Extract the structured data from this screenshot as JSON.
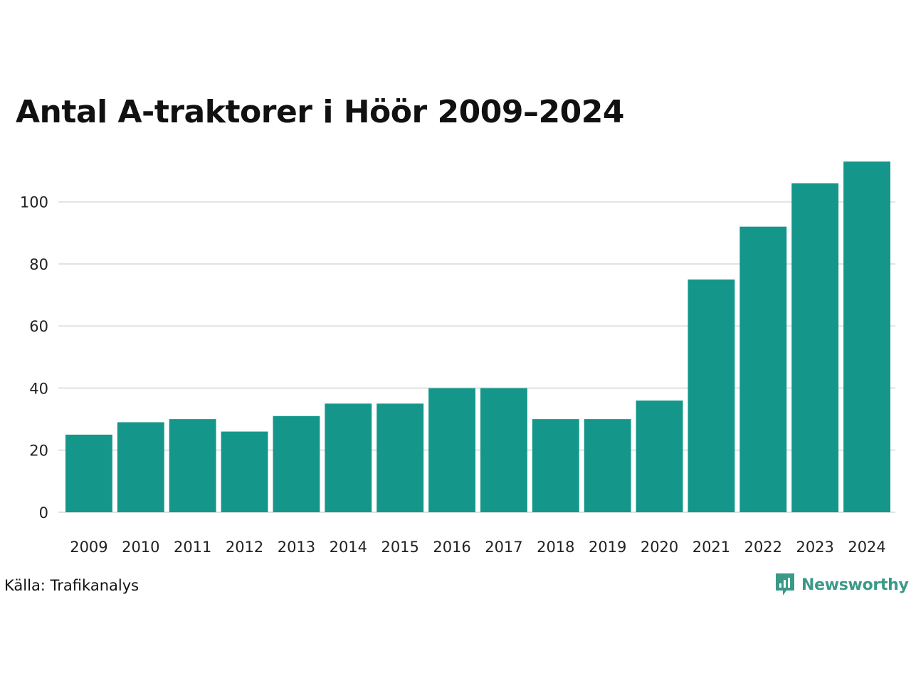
{
  "title": "Antal A-traktorer i Höör 2009–2024",
  "source": "Källa: Trafikanalys",
  "brand": {
    "name": "Newsworthy",
    "icon": "newsworthy-logo-icon",
    "color": "#3a9988"
  },
  "chart_data": {
    "type": "bar",
    "title": "Antal A-traktorer i Höör 2009–2024",
    "xlabel": "",
    "ylabel": "",
    "categories": [
      "2009",
      "2010",
      "2011",
      "2012",
      "2013",
      "2014",
      "2015",
      "2016",
      "2017",
      "2018",
      "2019",
      "2020",
      "2021",
      "2022",
      "2023",
      "2024"
    ],
    "values": [
      25,
      29,
      30,
      26,
      31,
      35,
      35,
      40,
      40,
      30,
      30,
      36,
      75,
      92,
      106,
      113
    ],
    "ylim": [
      0,
      113
    ],
    "yticks": [
      0,
      20,
      40,
      60,
      80,
      100
    ],
    "ytick_labels": [
      "0",
      "20",
      "40",
      "60",
      "80",
      "100"
    ],
    "grid": true,
    "legend": "none",
    "bar_color": "#14978a",
    "grid_color": "#e2e2e2"
  }
}
